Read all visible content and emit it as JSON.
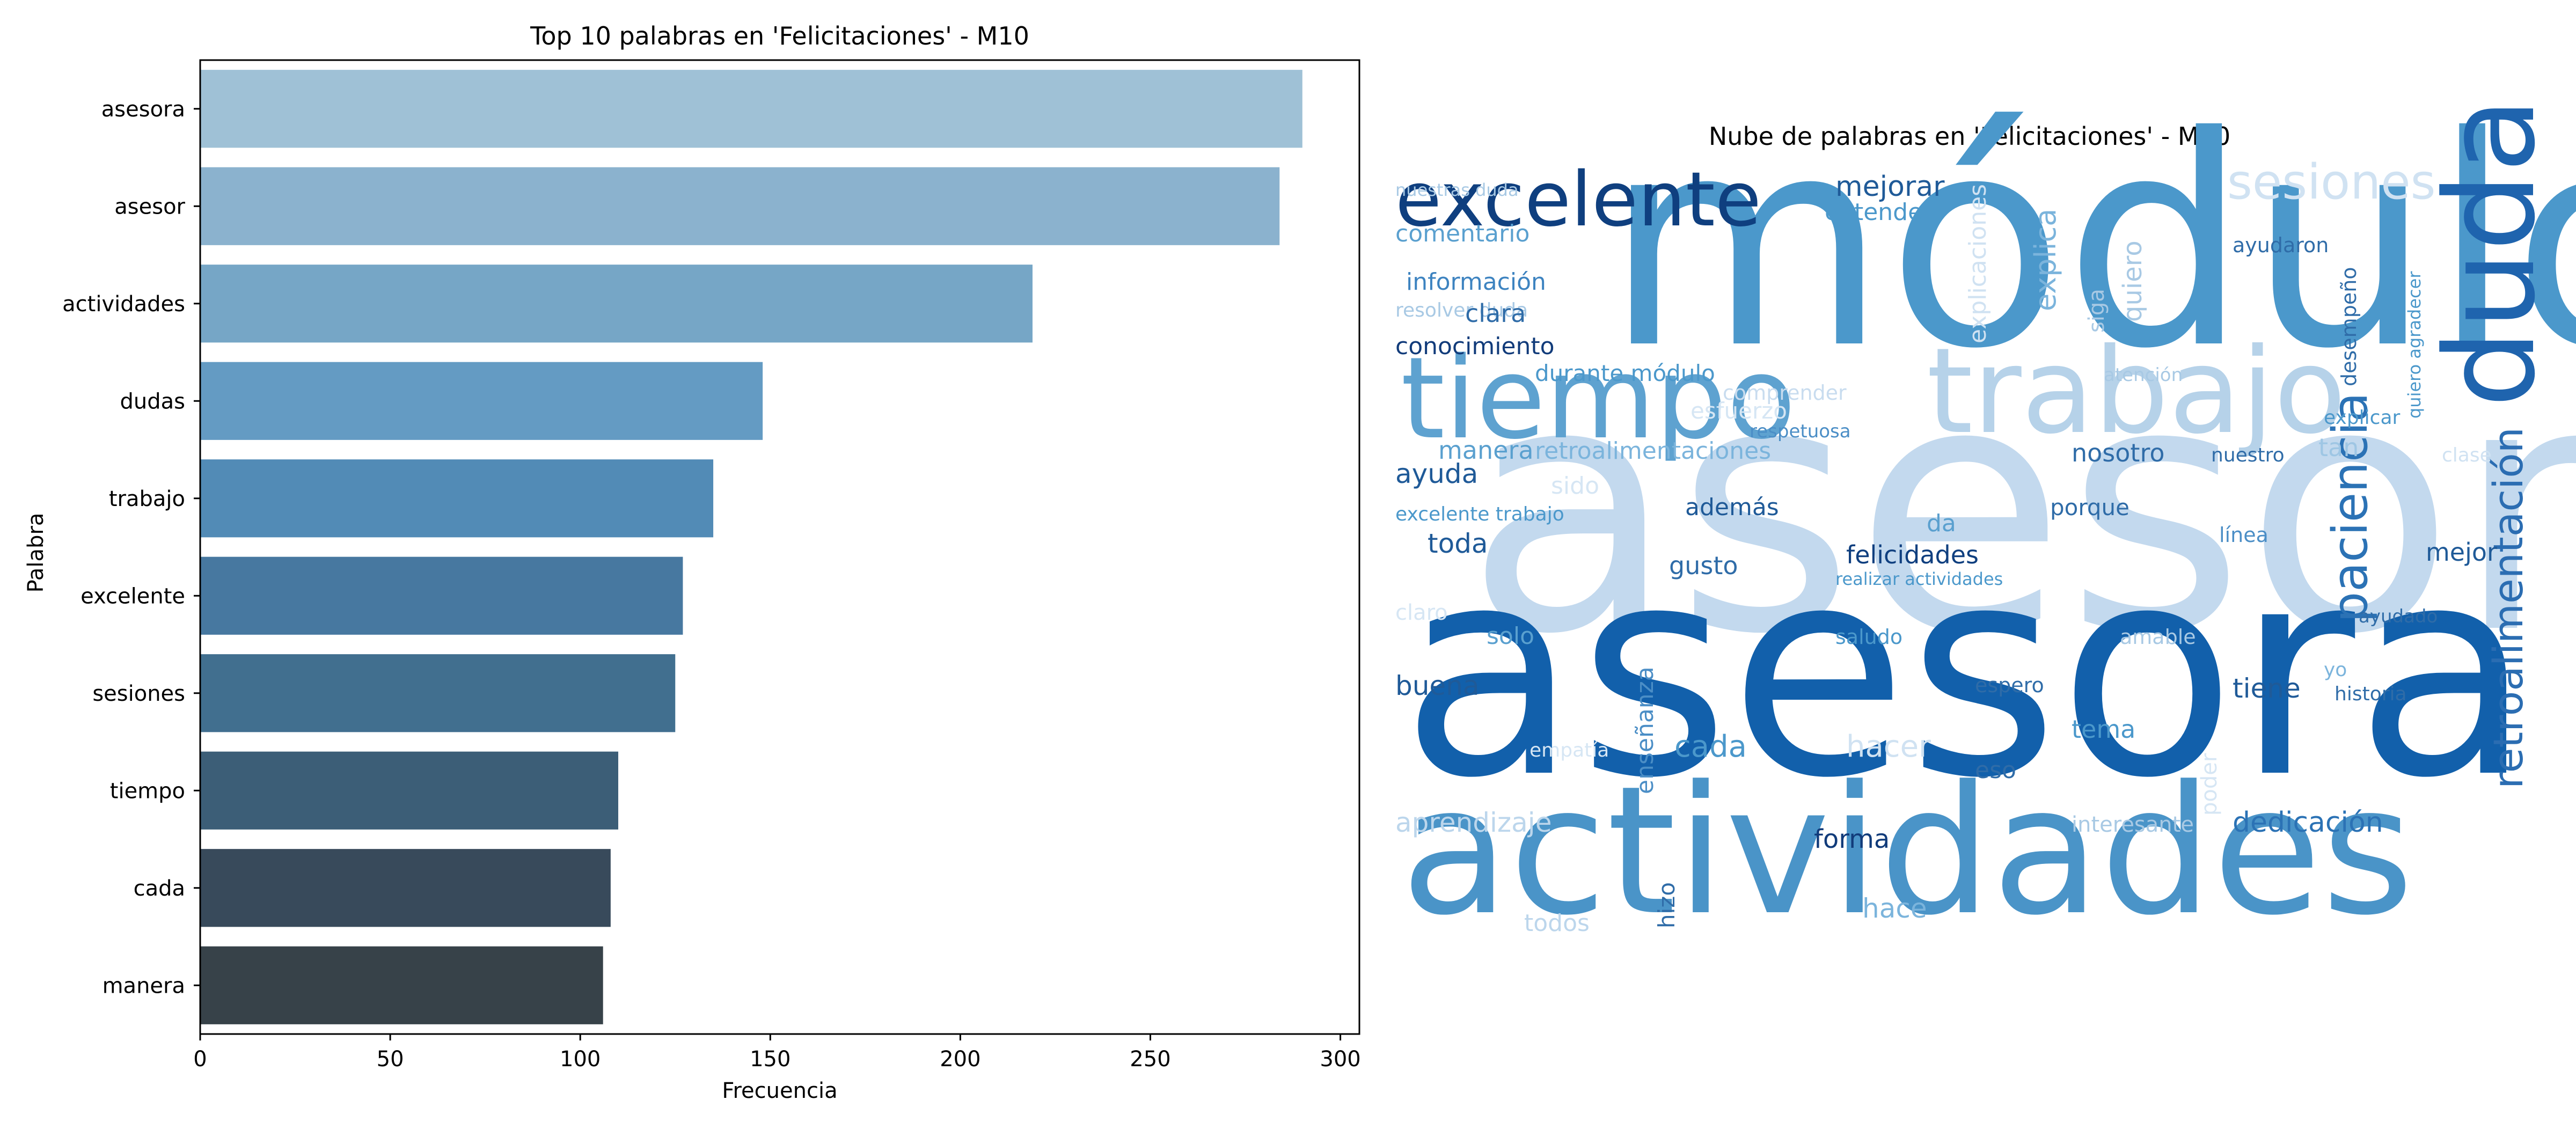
{
  "chart_data": [
    {
      "type": "bar",
      "orientation": "horizontal",
      "title": "Top 10 palabras en 'Felicitaciones' - M10",
      "xlabel": "Frecuencia",
      "ylabel": "Palabra",
      "xlim": [
        0,
        305
      ],
      "xticks": [
        0,
        50,
        100,
        150,
        200,
        250,
        300
      ],
      "grid": false,
      "categories": [
        "asesora",
        "asesor",
        "actividades",
        "dudas",
        "trabajo",
        "excelente",
        "sesiones",
        "tiempo",
        "cada",
        "manera"
      ],
      "values": [
        290,
        284,
        219,
        148,
        135,
        127,
        125,
        110,
        108,
        106
      ],
      "colors": [
        "#9fc1d6",
        "#8bb2ce",
        "#76a6c6",
        "#649bc3",
        "#528bb6",
        "#4778a0",
        "#416f8f",
        "#3c5e77",
        "#384a5b",
        "#374249"
      ]
    },
    {
      "type": "wordcloud",
      "title": "Nube de palabras en 'Felicitaciones' - M10",
      "colormap": "Blues",
      "words": [
        {
          "text": "asesor",
          "color": "#c3d9ee"
        },
        {
          "text": "asesora",
          "color": "#1260ab"
        },
        {
          "text": "módulo",
          "color": "#4b98cb"
        },
        {
          "text": "actividades",
          "color": "#4a94c8"
        },
        {
          "text": "trabajo",
          "color": "#b6d2e9"
        },
        {
          "text": "tiempo",
          "color": "#5ea2d0"
        },
        {
          "text": "excelente",
          "color": "#0f3f7f"
        },
        {
          "text": "duda",
          "color": "#1f64ae"
        },
        {
          "text": "paciencia",
          "color": "#2b72b5"
        },
        {
          "text": "retroalimentación",
          "color": "#2b6db2"
        },
        {
          "text": "sesiones",
          "color": "#d0e2f2"
        },
        {
          "text": "mejorar",
          "color": "#1f5a98"
        },
        {
          "text": "entender",
          "color": "#4b98cb"
        },
        {
          "text": "comentario",
          "color": "#5aa0cf"
        },
        {
          "text": "información",
          "color": "#3d83c0"
        },
        {
          "text": "resolver duda",
          "color": "#a8c9e4"
        },
        {
          "text": "clara",
          "color": "#2f6ca8"
        },
        {
          "text": "conocimiento",
          "color": "#113b7a"
        },
        {
          "text": "durante módulo",
          "color": "#4b98cb"
        },
        {
          "text": "esfuerzo",
          "color": "#d6e6f4"
        },
        {
          "text": "comprender",
          "color": "#c8dcef"
        },
        {
          "text": "respetuosa",
          "color": "#4b8ec6"
        },
        {
          "text": "manera",
          "color": "#5aa0cf"
        },
        {
          "text": "retroalimentaciones",
          "color": "#7bb4dc"
        },
        {
          "text": "nosotro",
          "color": "#2f6ca8"
        },
        {
          "text": "nuestro",
          "color": "#2f6ca8"
        },
        {
          "text": "tan",
          "color": "#9ec6e4"
        },
        {
          "text": "clase",
          "color": "#d0e2f2"
        },
        {
          "text": "ayuda",
          "color": "#1f5a98"
        },
        {
          "text": "sido",
          "color": "#d6e6f4"
        },
        {
          "text": "excelente trabajo",
          "color": "#4b98cb"
        },
        {
          "text": "además",
          "color": "#1f5a98"
        },
        {
          "text": "da",
          "color": "#5aa0cf"
        },
        {
          "text": "porque",
          "color": "#2f6ca8"
        },
        {
          "text": "toda",
          "color": "#1f5a98"
        },
        {
          "text": "felicidades",
          "color": "#0f3f7f"
        },
        {
          "text": "gusto",
          "color": "#2f6ca8"
        },
        {
          "text": "realizar actividades",
          "color": "#4b98cb"
        },
        {
          "text": "mejor",
          "color": "#1f5a98"
        },
        {
          "text": "línea",
          "color": "#4b8ec6"
        },
        {
          "text": "claro",
          "color": "#d6e6f4"
        },
        {
          "text": "solo",
          "color": "#5aa0cf"
        },
        {
          "text": "saludo",
          "color": "#4b98cb"
        },
        {
          "text": "amable",
          "color": "#a8c9e4"
        },
        {
          "text": "ayudado",
          "color": "#2f6ca8"
        },
        {
          "text": "buena",
          "color": "#1f5a98"
        },
        {
          "text": "espero",
          "color": "#2f6ca8"
        },
        {
          "text": "tiene",
          "color": "#1f5a98"
        },
        {
          "text": "historia",
          "color": "#2f6ca8"
        },
        {
          "text": "enseñanza",
          "color": "#4b8ec6"
        },
        {
          "text": "cada",
          "color": "#4b98cb"
        },
        {
          "text": "hacer",
          "color": "#d0e2f2"
        },
        {
          "text": "tema",
          "color": "#4b98cb"
        },
        {
          "text": "eso",
          "color": "#2f6ca8"
        },
        {
          "text": "empatía",
          "color": "#d6e6f4"
        },
        {
          "text": "aprendizaje",
          "color": "#bcd6ec"
        },
        {
          "text": "forma",
          "color": "#113b7a"
        },
        {
          "text": "interesante",
          "color": "#a8c9e4"
        },
        {
          "text": "dedicación",
          "color": "#2b72b5"
        },
        {
          "text": "hizo",
          "color": "#2f6ca8"
        },
        {
          "text": "todos",
          "color": "#bcd6ec"
        },
        {
          "text": "hace",
          "color": "#7bb4dc"
        },
        {
          "text": "explica",
          "color": "#7bb4dc"
        },
        {
          "text": "explicaciones",
          "color": "#d0e2f2"
        },
        {
          "text": "siga",
          "color": "#a8c9e4"
        },
        {
          "text": "quiero",
          "color": "#a8c9e4"
        },
        {
          "text": "ayudaron",
          "color": "#2f6ca8"
        },
        {
          "text": "desempeño",
          "color": "#2f6ca8"
        },
        {
          "text": "quiero agradecer",
          "color": "#4b98cb"
        },
        {
          "text": "explicar",
          "color": "#4b98cb"
        },
        {
          "text": "atención",
          "color": "#a8c9e4"
        },
        {
          "text": "poder",
          "color": "#d6e6f4"
        },
        {
          "text": "nuestras duda",
          "color": "#a8c9e4"
        },
        {
          "text": "yo",
          "color": "#7bb4dc"
        }
      ]
    }
  ]
}
